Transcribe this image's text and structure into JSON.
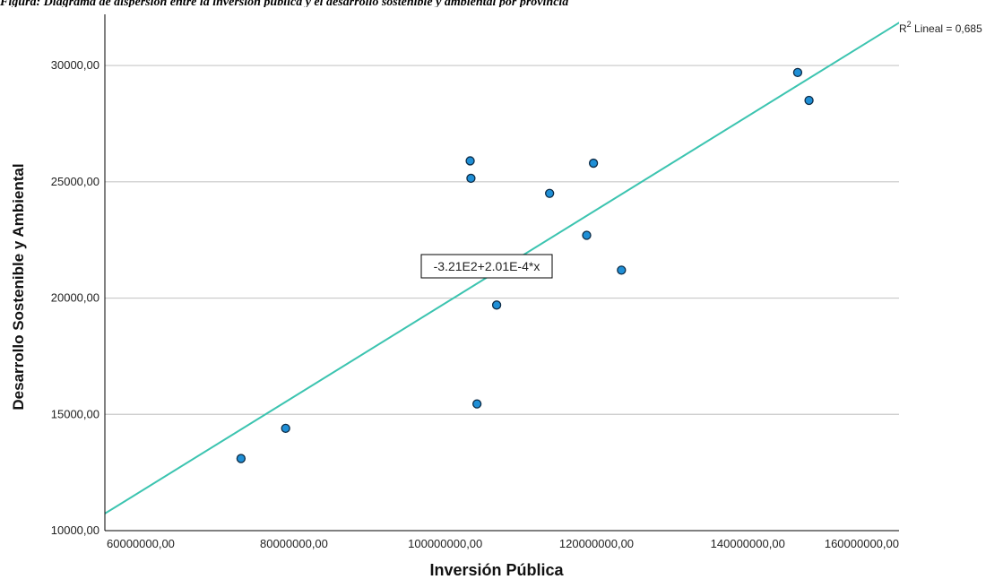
{
  "caption": "Figura: Diagrama de dispersión entre la inversión pública y el desarrollo sostenible y ambiental por provincia",
  "chart_data": {
    "type": "scatter",
    "xlabel": "Inversión Pública",
    "ylabel": "Desarrollo Sostenible y Ambiental",
    "xlim": [
      55000000,
      160000000
    ],
    "ylim": [
      10000,
      32200
    ],
    "x_ticks": [
      60000000,
      80000000,
      100000000,
      120000000,
      140000000,
      160000000
    ],
    "x_tick_labels": [
      "60000000,00",
      "80000000,00",
      "100000000,00",
      "120000000,00",
      "140000000,00",
      "160000000,00"
    ],
    "y_ticks": [
      10000,
      15000,
      20000,
      25000,
      30000
    ],
    "y_tick_labels": [
      "10000,00",
      "15000,00",
      "20000,00",
      "25000,00",
      "30000,00"
    ],
    "grid": "horizontal",
    "points": [
      {
        "x": 73000000,
        "y": 13100
      },
      {
        "x": 78900000,
        "y": 14400
      },
      {
        "x": 103300000,
        "y": 25900
      },
      {
        "x": 103400000,
        "y": 25150
      },
      {
        "x": 104200000,
        "y": 15450
      },
      {
        "x": 106800000,
        "y": 19700
      },
      {
        "x": 113800000,
        "y": 24500
      },
      {
        "x": 118700000,
        "y": 22700
      },
      {
        "x": 119600000,
        "y": 25800
      },
      {
        "x": 123300000,
        "y": 21200
      },
      {
        "x": 146600000,
        "y": 29700
      },
      {
        "x": 148100000,
        "y": 28500
      }
    ],
    "fit_line": {
      "intercept": -321,
      "slope": 0.000201,
      "equation_label": "-3.21E2+2.01E-4*x"
    },
    "r2_label": {
      "prefix": "R",
      "superscript": "2",
      "text": " Lineal = 0,685"
    },
    "colors": {
      "point_fill": "#1f8fd6",
      "point_stroke": "#0d2b45",
      "fit_line": "#3cc4b0",
      "grid": "#c8c8c8",
      "axis": "#000000"
    }
  }
}
